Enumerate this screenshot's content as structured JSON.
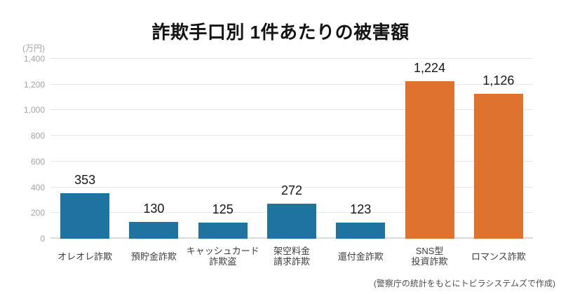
{
  "title": "詐欺手口別 1件あたりの被害額",
  "source_note": "(警察庁の統計をもとにトビラシステムズで作成)",
  "colors": {
    "bar_default": "#1e73a0",
    "bar_highlight": "#e0722f",
    "gridline": "#e7e7e7",
    "axis_baseline": "#dadada",
    "tick_text": "#a3a3a3",
    "category_text": "#3d3d3d",
    "value_text": "#161616"
  },
  "chart_data": {
    "type": "bar",
    "title": "詐欺手口別 1件あたりの被害額",
    "unit_label": "(万円)",
    "categories": [
      "オレオレ詐欺",
      "預貯金詐欺",
      "キャッシュカード\n詐欺盗",
      "架空料金\n請求詐欺",
      "還付金詐欺",
      "SNS型\n投資詐欺",
      "ロマンス詐欺"
    ],
    "values": [
      353,
      130,
      125,
      272,
      123,
      1224,
      1126
    ],
    "value_labels": [
      "353",
      "130",
      "125",
      "272",
      "123",
      "1,224",
      "1,126"
    ],
    "bar_colors": [
      "#1e73a0",
      "#1e73a0",
      "#1e73a0",
      "#1e73a0",
      "#1e73a0",
      "#e0722f",
      "#e0722f"
    ],
    "ylim": [
      0,
      1400
    ],
    "ytick_interval": 200,
    "yticks": [
      "0",
      "200",
      "400",
      "600",
      "800",
      "1,000",
      "1,200",
      "1,400"
    ],
    "xlabel": "",
    "ylabel": "(万円)",
    "grid": true,
    "legend": "none",
    "source": "(警察庁の統計をもとにトビラシステムズで作成)"
  }
}
